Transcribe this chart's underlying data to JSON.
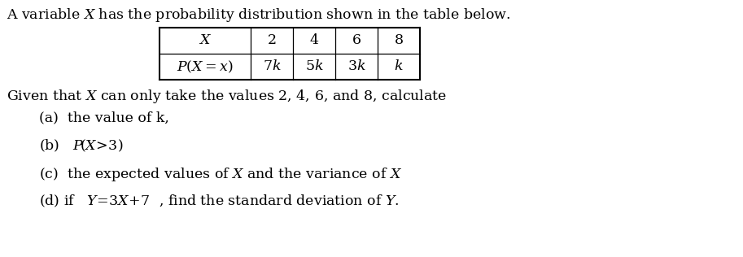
{
  "title_text": "A variable $X$ has the probability distribution shown in the table below.",
  "table_col0_row0": "$X$",
  "table_col0_row1": "$P(X=x)$",
  "table_vals_row0": [
    "2",
    "4",
    "6",
    "8"
  ],
  "table_vals_row1": [
    "7$k$",
    "5$k$",
    "3$k$",
    "$k$"
  ],
  "given_text": "Given that $X$ can only take the values 2, 4, 6, and 8, calculate",
  "part_a": "(a)  the value of k,",
  "part_b": "(b)   $P\\!\\left(X\\!>\\!3\\right)$",
  "part_c": "(c)  the expected values of $X$ and the variance of $X$",
  "part_d": "(d) if   $Y\\!=\\!3X\\!+\\!7$  , find the standard deviation of $Y$.",
  "bg_color": "#ffffff",
  "text_color": "#000000",
  "font_size": 12.5
}
